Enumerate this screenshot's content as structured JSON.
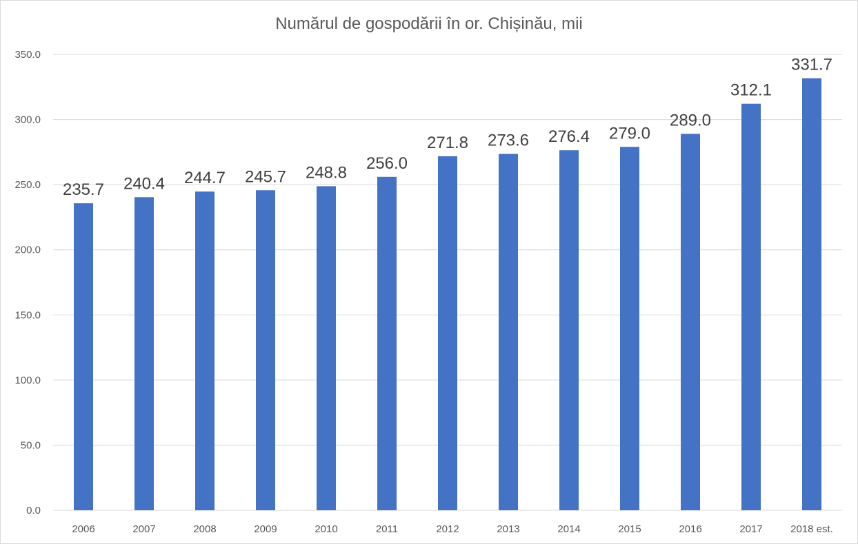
{
  "chart_data": {
    "type": "bar",
    "title": "Numărul de gospodării în or. Chișinău, mii",
    "xlabel": "",
    "ylabel": "",
    "categories": [
      "2006",
      "2007",
      "2008",
      "2009",
      "2010",
      "2011",
      "2012",
      "2013",
      "2014",
      "2015",
      "2016",
      "2017",
      "2018 est."
    ],
    "values": [
      235.7,
      240.4,
      244.7,
      245.7,
      248.8,
      256.0,
      271.8,
      273.6,
      276.4,
      279.0,
      289.0,
      312.1,
      331.7
    ],
    "value_labels": [
      "235.7",
      "240.4",
      "244.7",
      "245.7",
      "248.8",
      "256.0",
      "271.8",
      "273.6",
      "276.4",
      "279.0",
      "289.0",
      "312.1",
      "331.7"
    ],
    "ylim": [
      0,
      350
    ],
    "y_ticks": [
      0,
      50,
      100,
      150,
      200,
      250,
      300,
      350
    ],
    "y_tick_labels": [
      "0.0",
      "50.0",
      "100.0",
      "150.0",
      "200.0",
      "250.0",
      "300.0",
      "350.0"
    ],
    "grid": true,
    "legend": "none",
    "colors": {
      "bar": "#4472C4",
      "grid": "#d9d9d9",
      "text": "#595959"
    }
  }
}
